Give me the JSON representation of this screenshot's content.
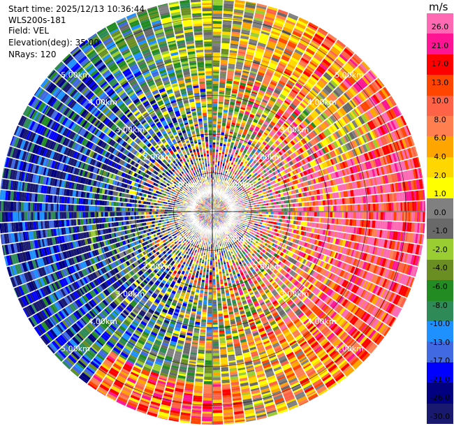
{
  "info": {
    "start_time": "Start time: 2025/12/13 10:36:44",
    "instrument": "WLS200s-181",
    "field": "Field: VEL",
    "elevation": "Elevation(deg): 35.00",
    "nrays": "NRays: 120"
  },
  "chart_data": {
    "type": "ppi-scan",
    "field": "VEL",
    "units": "m/s",
    "nrays": 120,
    "range_rings_km": [
      1,
      2,
      3,
      4,
      5
    ],
    "range_ring_labels": [
      "1.00km",
      "2.00km",
      "3.00km",
      "4.00km",
      "5.00km"
    ],
    "max_range_km": 5.5,
    "colorbar": {
      "title": "m/s",
      "vmin": -30.0,
      "vmax": 30.0,
      "colors": [
        "#191970",
        "#000080",
        "#0000ff",
        "#4169e1",
        "#1e90ff",
        "#2e8b57",
        "#228b22",
        "#6b8e23",
        "#9acd32",
        "#696969",
        "#808080",
        "#ffff00",
        "#ffd700",
        "#ffa500",
        "#ff7f50",
        "#ff6347",
        "#ff4500",
        "#ff0000",
        "#ff1493",
        "#ff69b4"
      ],
      "tick_values": [
        26.0,
        21.0,
        17.0,
        13.0,
        10.0,
        8.0,
        6.0,
        4.0,
        2.0,
        1.0,
        0.0,
        -1.0,
        -2.0,
        -4.0,
        -6.0,
        -8.0,
        -10.0,
        -13.0,
        -17.0,
        -21.0,
        -26.0,
        -30.0
      ],
      "tick_labels": [
        "26.0",
        "21.0",
        "17.0",
        "13.0",
        "10.0",
        "8.0",
        "6.0",
        "4.0",
        "2.0",
        "1.0",
        "0.0",
        "-1.0",
        "-2.0",
        "-4.0",
        "-6.0",
        "-8.0",
        "-10.0",
        "-13.0",
        "-17.0",
        "-21.0",
        "-26.0",
        "-30.0"
      ]
    }
  }
}
